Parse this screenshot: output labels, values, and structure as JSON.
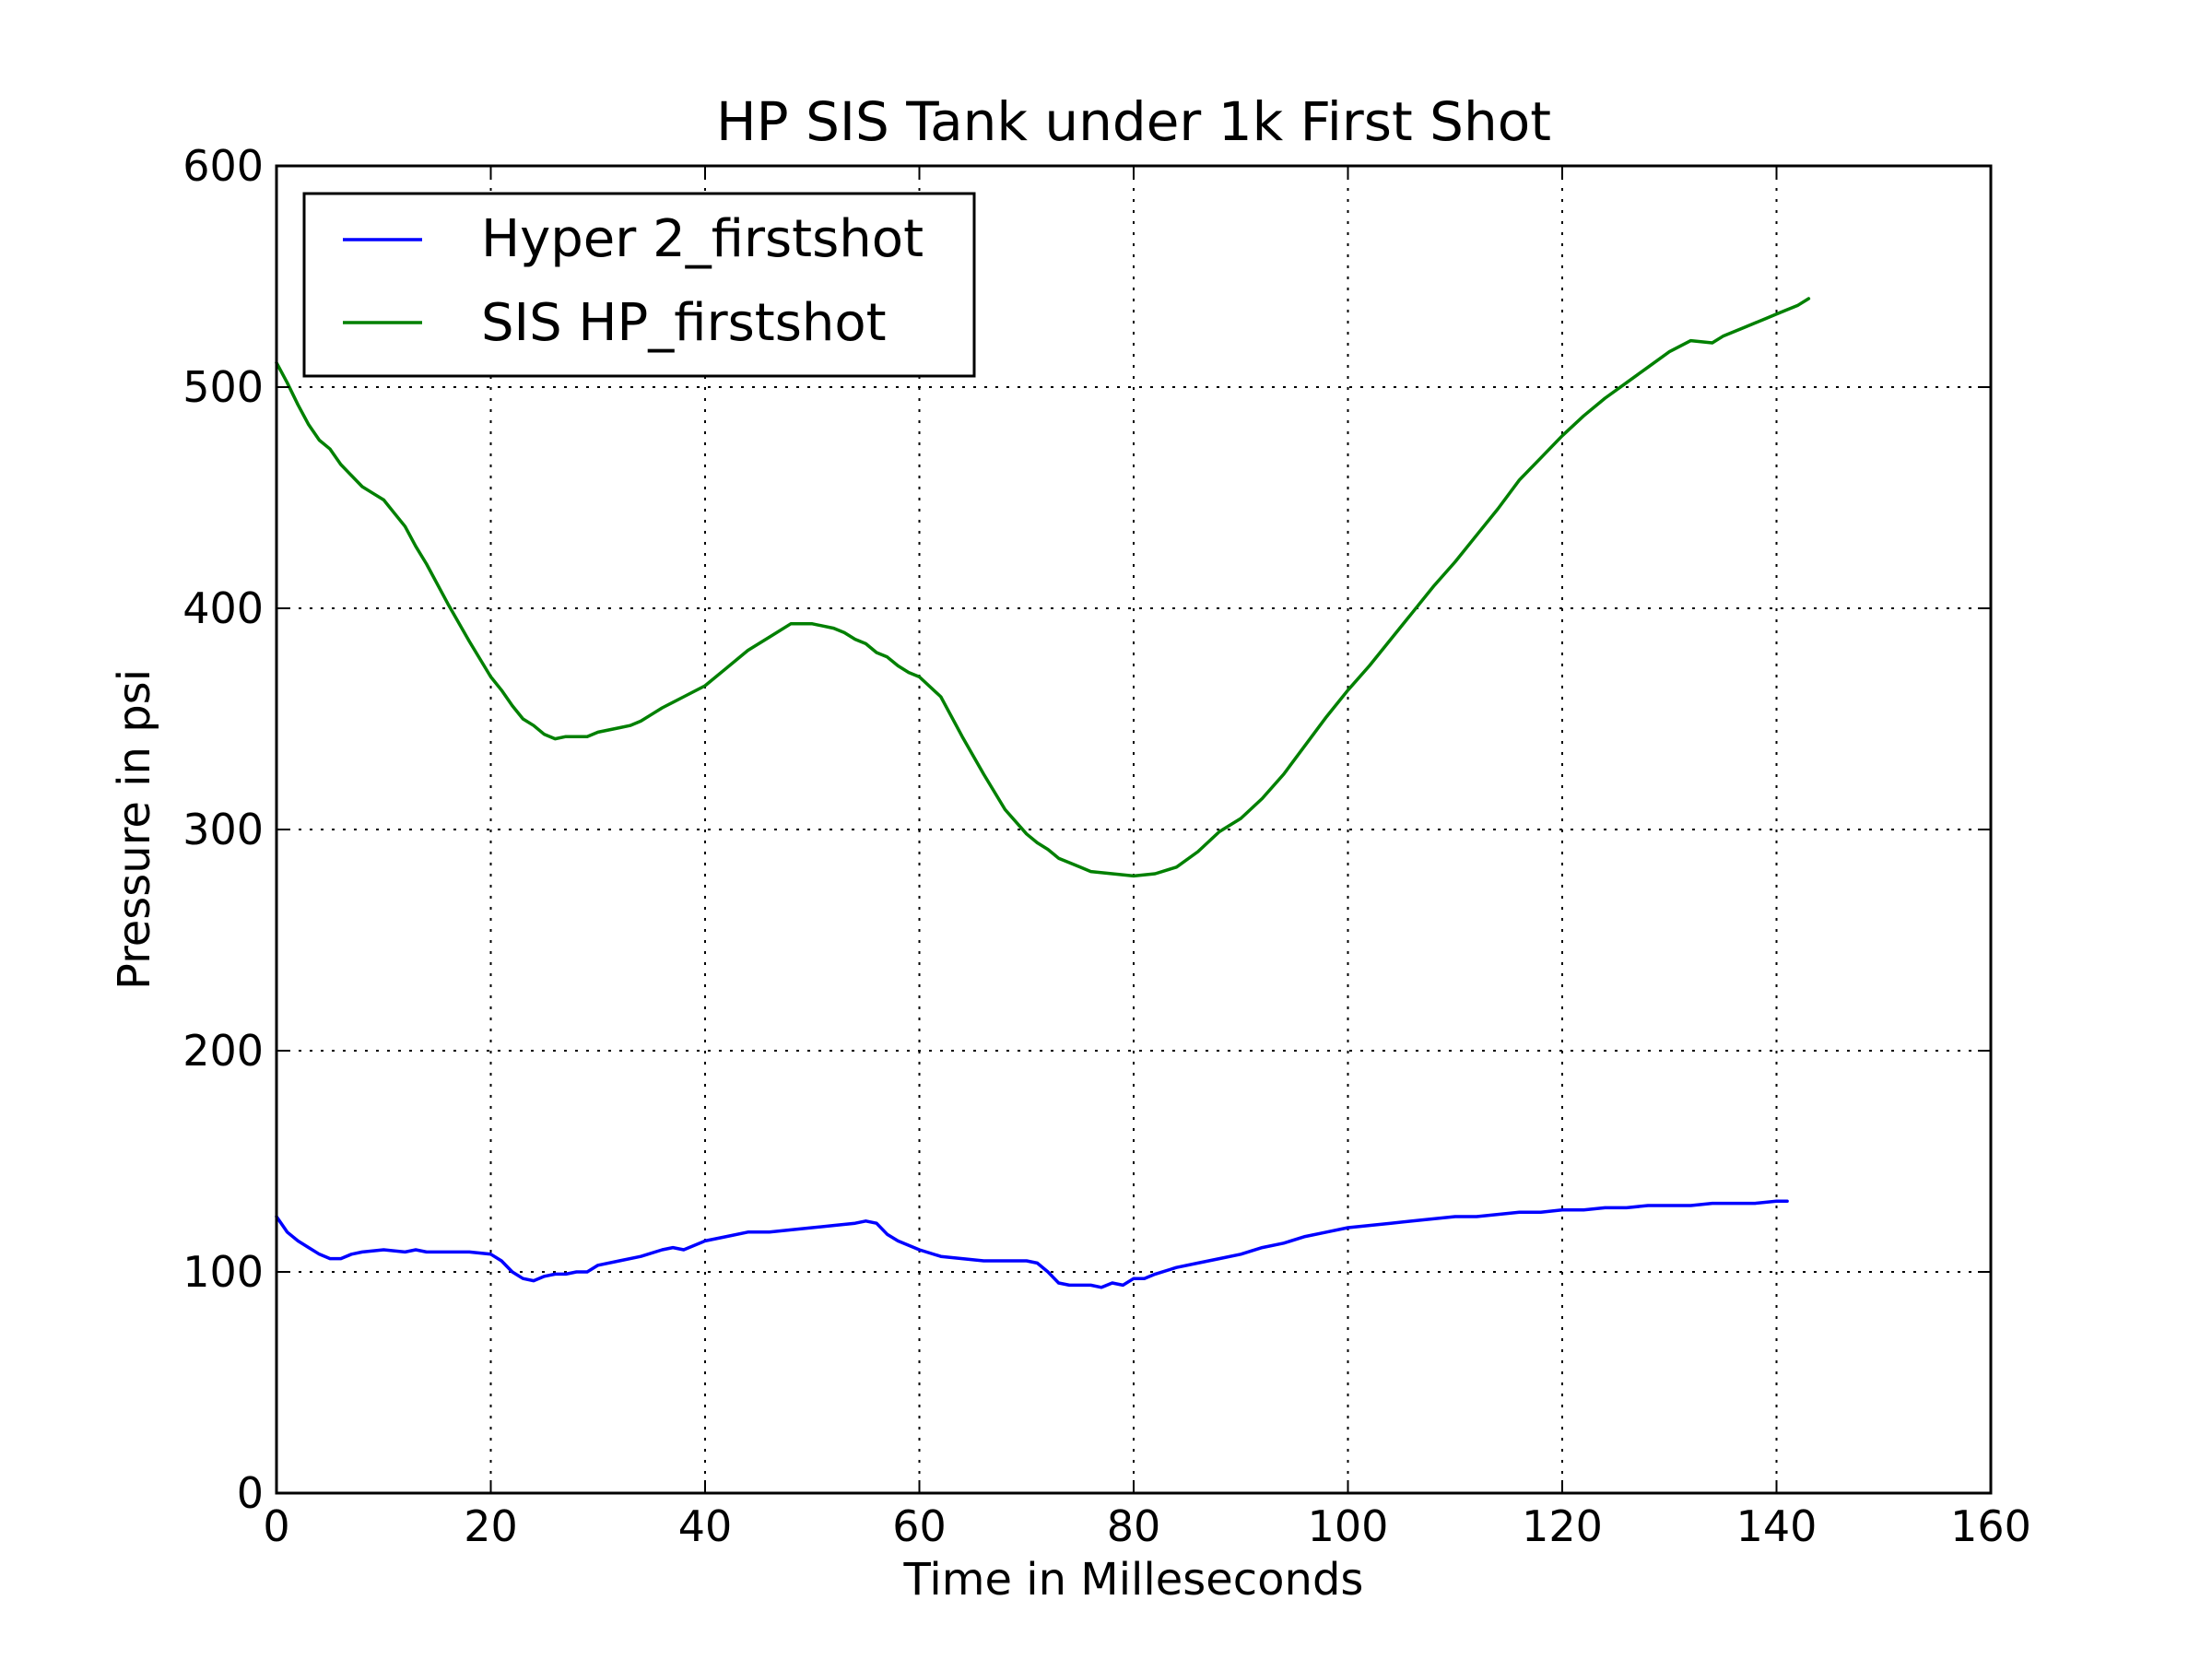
{
  "chart_data": {
    "type": "line",
    "title": "HP SIS Tank under 1k First Shot",
    "xlabel": "Time in Milleseconds",
    "ylabel": "Pressure in psi",
    "xlim": [
      0,
      160
    ],
    "ylim": [
      0,
      600
    ],
    "xticks": [
      0,
      20,
      40,
      60,
      80,
      100,
      120,
      140,
      160
    ],
    "yticks": [
      0,
      100,
      200,
      300,
      400,
      500,
      600
    ],
    "grid": true,
    "legend_position": "top-left",
    "series": [
      {
        "name": "Hyper 2_firstshot",
        "color": "#0000ff",
        "x": [
          0,
          1,
          2,
          3,
          4,
          5,
          6,
          7,
          8,
          10,
          12,
          13,
          14,
          16,
          18,
          20,
          21,
          22,
          23,
          24,
          25,
          26,
          27,
          28,
          29,
          30,
          32,
          34,
          36,
          37,
          38,
          40,
          42,
          44,
          46,
          48,
          50,
          52,
          54,
          55,
          56,
          57,
          58,
          60,
          62,
          64,
          66,
          68,
          70,
          71,
          72,
          73,
          74,
          76,
          77,
          78,
          79,
          80,
          81,
          82,
          84,
          86,
          88,
          90,
          92,
          94,
          96,
          98,
          100,
          102,
          104,
          106,
          108,
          110,
          112,
          114,
          116,
          118,
          120,
          122,
          124,
          126,
          128,
          130,
          132,
          134,
          136,
          138,
          140,
          141
        ],
        "y": [
          125,
          118,
          114,
          111,
          108,
          106,
          106,
          108,
          109,
          110,
          109,
          110,
          109,
          109,
          109,
          108,
          105,
          100,
          97,
          96,
          98,
          99,
          99,
          100,
          100,
          103,
          105,
          107,
          110,
          111,
          110,
          114,
          116,
          118,
          118,
          119,
          120,
          121,
          122,
          123,
          122,
          117,
          114,
          110,
          107,
          106,
          105,
          105,
          105,
          104,
          100,
          95,
          94,
          94,
          93,
          95,
          94,
          97,
          97,
          99,
          102,
          104,
          106,
          108,
          111,
          113,
          116,
          118,
          120,
          121,
          122,
          123,
          124,
          125,
          125,
          126,
          127,
          127,
          128,
          128,
          129,
          129,
          130,
          130,
          130,
          131,
          131,
          131,
          132,
          132
        ]
      },
      {
        "name": "SIS HP_firstshot",
        "color": "#008000",
        "x": [
          0,
          1,
          2,
          3,
          4,
          5,
          6,
          7,
          8,
          9,
          10,
          11,
          12,
          13,
          14,
          16,
          18,
          20,
          21,
          22,
          23,
          24,
          25,
          26,
          27,
          28,
          29,
          30,
          31,
          32,
          33,
          34,
          35,
          36,
          38,
          40,
          42,
          44,
          46,
          48,
          49,
          50,
          51,
          52,
          53,
          54,
          55,
          56,
          57,
          58,
          59,
          60,
          62,
          64,
          66,
          68,
          70,
          71,
          72,
          73,
          74,
          75,
          76,
          78,
          80,
          82,
          84,
          86,
          88,
          90,
          92,
          94,
          96,
          98,
          100,
          102,
          104,
          106,
          108,
          110,
          112,
          114,
          116,
          118,
          120,
          122,
          124,
          126,
          128,
          130,
          132,
          134,
          135,
          136,
          137,
          138,
          139,
          140,
          141,
          142,
          143
        ],
        "y": [
          511,
          502,
          492,
          483,
          476,
          472,
          465,
          460,
          455,
          452,
          449,
          443,
          437,
          428,
          420,
          402,
          385,
          369,
          363,
          356,
          350,
          347,
          343,
          341,
          342,
          342,
          342,
          344,
          345,
          346,
          347,
          349,
          352,
          355,
          360,
          365,
          373,
          381,
          387,
          393,
          393,
          393,
          392,
          391,
          389,
          386,
          384,
          380,
          378,
          374,
          371,
          369,
          360,
          342,
          325,
          309,
          298,
          294,
          291,
          287,
          285,
          283,
          281,
          280,
          279,
          280,
          283,
          290,
          299,
          305,
          314,
          325,
          338,
          351,
          363,
          374,
          386,
          398,
          410,
          421,
          433,
          445,
          458,
          468,
          478,
          487,
          495,
          502,
          509,
          516,
          521,
          520,
          523,
          525,
          527,
          529,
          531,
          533,
          535,
          537,
          540
        ]
      }
    ]
  }
}
